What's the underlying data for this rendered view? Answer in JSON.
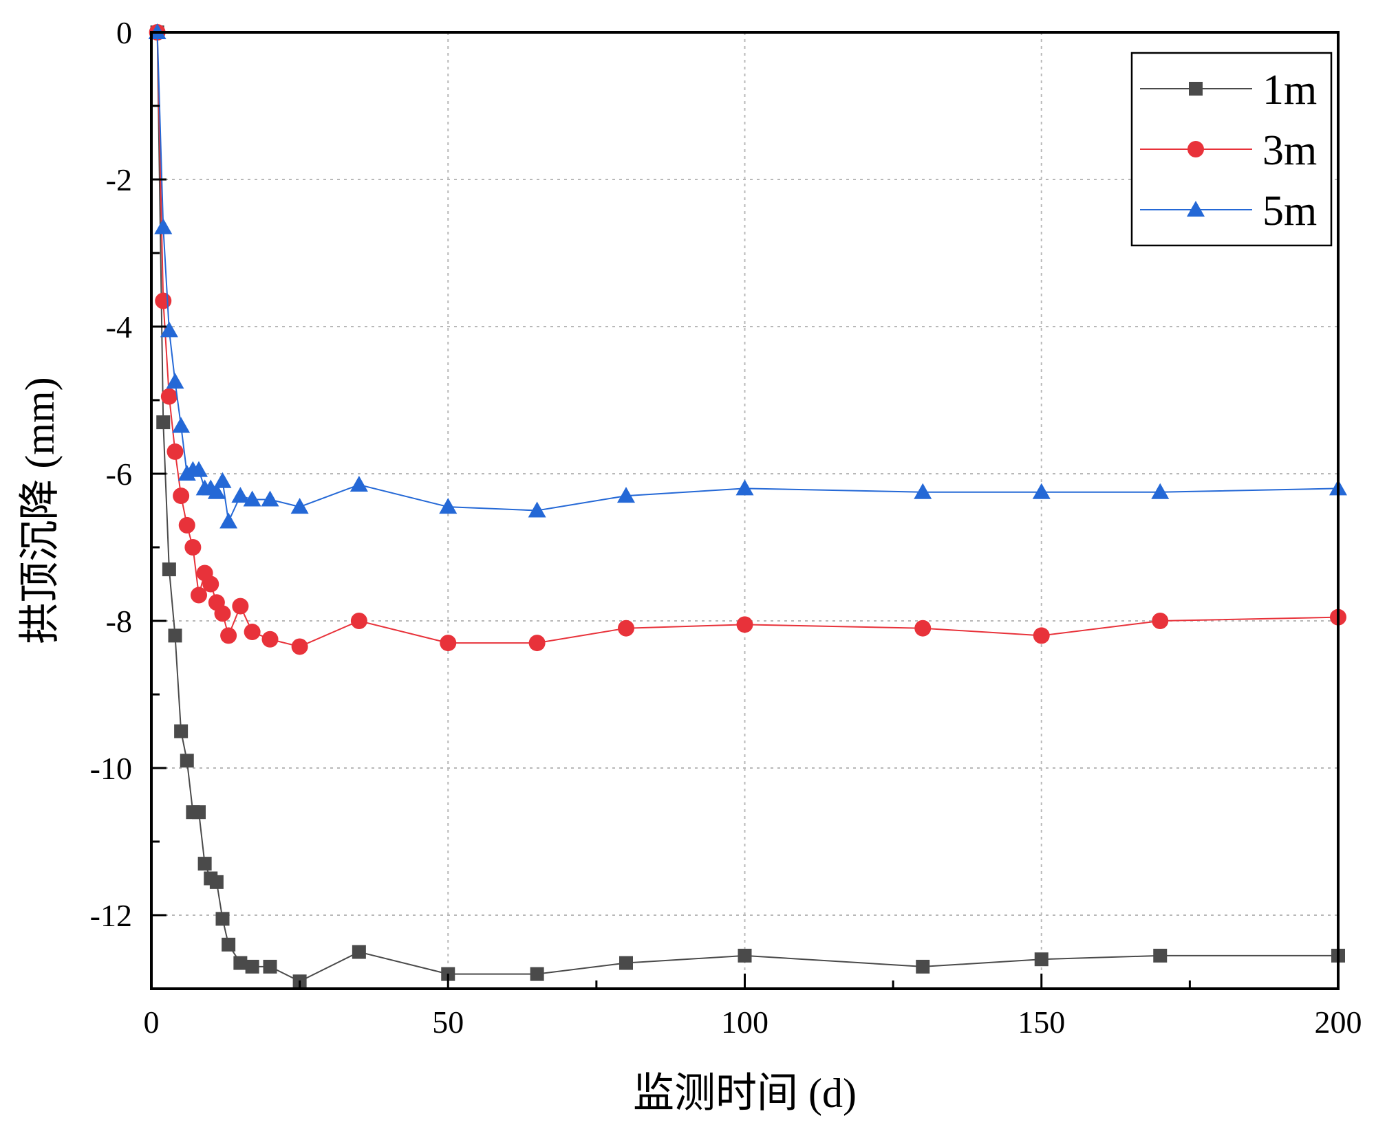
{
  "chart_data": {
    "type": "line",
    "title": "",
    "xlabel": "监测时间 (d)",
    "ylabel": "拱顶沉降 (mm)",
    "xlim": [
      0,
      200
    ],
    "ylim": [
      -13,
      0
    ],
    "xticks": [
      0,
      50,
      100,
      150,
      200
    ],
    "xtick_labels": [
      "0",
      "50",
      "100",
      "150",
      "200"
    ],
    "x_minor_step": 25,
    "yticks": [
      0,
      -2,
      -4,
      -6,
      -8,
      -10,
      -12
    ],
    "ytick_labels": [
      "0",
      "-2",
      "-4",
      "-6",
      "-8",
      "-10",
      "-12"
    ],
    "y_minor_step": 1,
    "grid": true,
    "legend_position": "top-right",
    "x": [
      1,
      2,
      3,
      4,
      5,
      6,
      7,
      8,
      9,
      10,
      11,
      12,
      13,
      15,
      17,
      20,
      25,
      35,
      50,
      65,
      80,
      100,
      130,
      150,
      170,
      200
    ],
    "series": [
      {
        "name": "1m",
        "color": "#4a4a4a",
        "marker": "square",
        "values": [
          0,
          -5.3,
          -7.3,
          -8.2,
          -9.5,
          -9.9,
          -10.6,
          -10.6,
          -11.3,
          -11.5,
          -11.55,
          -12.05,
          -12.4,
          -12.65,
          -12.7,
          -12.7,
          -12.9,
          -12.5,
          -12.8,
          -12.8,
          -12.65,
          -12.55,
          -12.7,
          -12.6,
          -12.55,
          -12.55
        ]
      },
      {
        "name": "3m",
        "color": "#e8323a",
        "marker": "circle",
        "values": [
          0,
          -3.65,
          -4.95,
          -5.7,
          -6.3,
          -6.7,
          -7.0,
          -7.65,
          -7.35,
          -7.5,
          -7.75,
          -7.9,
          -8.2,
          -7.8,
          -8.15,
          -8.25,
          -8.35,
          -8.0,
          -8.3,
          -8.3,
          -8.1,
          -8.05,
          -8.1,
          -8.2,
          -8.0,
          -7.95
        ]
      },
      {
        "name": "5m",
        "color": "#2468d6",
        "marker": "triangle",
        "values": [
          0,
          -2.65,
          -4.05,
          -4.75,
          -5.35,
          -6.0,
          -5.95,
          -5.95,
          -6.2,
          -6.2,
          -6.25,
          -6.1,
          -6.65,
          -6.3,
          -6.35,
          -6.35,
          -6.45,
          -6.15,
          -6.45,
          -6.5,
          -6.3,
          -6.2,
          -6.25,
          -6.25,
          -6.25,
          -6.2
        ]
      }
    ]
  }
}
